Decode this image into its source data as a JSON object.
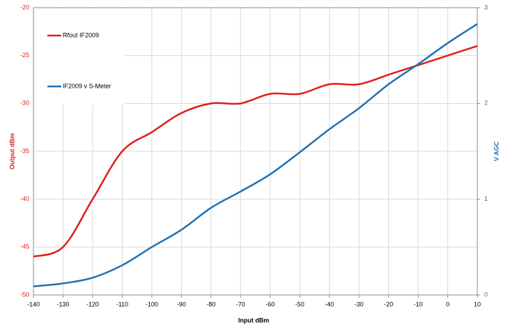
{
  "chart_data": {
    "type": "line",
    "x_label": "Input dBm",
    "y_label": "Output dBm",
    "y2_label": "V AGC",
    "x": [
      -140,
      -130,
      -120,
      -110,
      -100,
      -90,
      -80,
      -70,
      -60,
      -50,
      -40,
      -30,
      -20,
      -10,
      0,
      10
    ],
    "xlim": [
      -140,
      10
    ],
    "xticks": [
      -140,
      -130,
      -120,
      -110,
      -100,
      -90,
      -80,
      -70,
      -60,
      -50,
      -40,
      -30,
      -20,
      -10,
      0,
      10
    ],
    "ylim": [
      -50,
      -20
    ],
    "yticks": [
      -50,
      -45,
      -40,
      -35,
      -30,
      -25,
      -20
    ],
    "y2lim": [
      0,
      3
    ],
    "y2ticks": [
      0,
      1,
      2,
      3
    ],
    "grid": true,
    "legend": "upper left",
    "series": [
      {
        "name": "Rfout IF2009",
        "color": "#e31a1c",
        "values": [
          -46,
          -45,
          -40,
          -35,
          -33,
          -31,
          -30,
          -30,
          -29,
          -29,
          -28,
          -28,
          -27,
          -26,
          -25,
          -24
        ]
      },
      {
        "name": "IF2009 v S-Meter",
        "color": "#1f6fb4",
        "axis": "y2",
        "values": [
          0.09,
          0.12,
          0.18,
          0.31,
          0.5,
          0.68,
          0.91,
          1.08,
          1.26,
          1.49,
          1.73,
          1.95,
          2.2,
          2.41,
          2.63,
          2.83
        ]
      }
    ]
  }
}
